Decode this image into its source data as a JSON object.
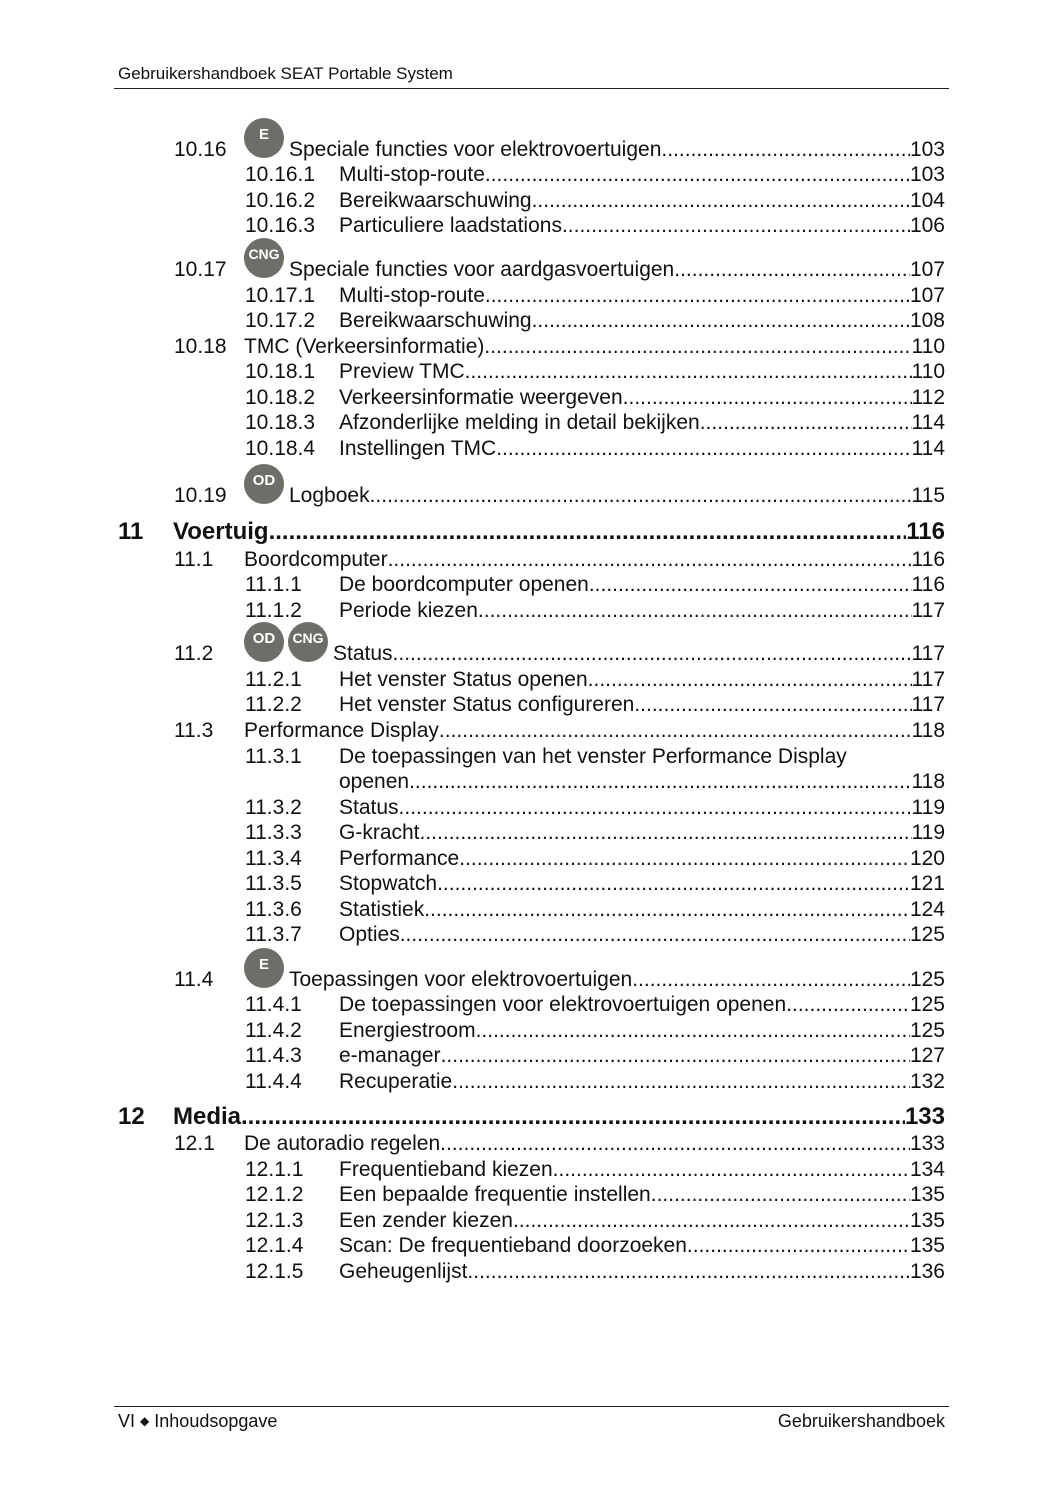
{
  "header": {
    "title": "Gebruikershandboek SEAT Portable System"
  },
  "footer": {
    "left_roman": "VI",
    "left_separator": "◆",
    "left_section": "Inhoudsopgave",
    "right": "Gebruikershandboek"
  },
  "badge_color": "#6f6d68",
  "entries": [
    {
      "level": 2,
      "num": "10.16",
      "title": "Speciale functies voor elektrovoertuigen",
      "page": "103",
      "badges": [
        "E"
      ]
    },
    {
      "level": 3,
      "num": "10.16.1",
      "title": "Multi-stop-route",
      "page": "103"
    },
    {
      "level": 3,
      "num": "10.16.2",
      "title": "Bereikwaarschuwing",
      "page": "104"
    },
    {
      "level": 3,
      "num": "10.16.3",
      "title": "Particuliere laadstations",
      "page": "106"
    },
    {
      "level": 2,
      "num": "10.17",
      "title": "Speciale functies voor aardgasvoertuigen",
      "page": "107",
      "badges": [
        "CNG"
      ]
    },
    {
      "level": 3,
      "num": "10.17.1",
      "title": "Multi-stop-route",
      "page": "107"
    },
    {
      "level": 3,
      "num": "10.17.2",
      "title": "Bereikwaarschuwing",
      "page": "108"
    },
    {
      "level": 2,
      "num": "10.18",
      "title": "TMC (Verkeersinformatie)",
      "page": "110"
    },
    {
      "level": 3,
      "num": "10.18.1",
      "title": "Preview TMC",
      "page": "110"
    },
    {
      "level": 3,
      "num": "10.18.2",
      "title": "Verkeersinformatie weergeven",
      "page": "112"
    },
    {
      "level": 3,
      "num": "10.18.3",
      "title": "Afzonderlijke melding in detail bekijken",
      "page": "114"
    },
    {
      "level": 3,
      "num": "10.18.4",
      "title": "Instellingen TMC",
      "page": "114"
    },
    {
      "level": 2,
      "num": "10.19",
      "title": "Logboek",
      "page": "115",
      "badges": [
        "OD"
      ]
    },
    {
      "level": 1,
      "num": "11",
      "title": "Voertuig",
      "page": "116"
    },
    {
      "level": 2,
      "num": "11.1",
      "title": "Boordcomputer",
      "page": "116"
    },
    {
      "level": 3,
      "num": "11.1.1",
      "title": "De boordcomputer openen",
      "page": "116"
    },
    {
      "level": 3,
      "num": "11.1.2",
      "title": "Periode kiezen",
      "page": "117"
    },
    {
      "level": 2,
      "num": "11.2",
      "title": "Status",
      "page": "117",
      "badges": [
        "OD",
        "CNG"
      ]
    },
    {
      "level": 3,
      "num": "11.2.1",
      "title": "Het venster Status openen",
      "page": "117"
    },
    {
      "level": 3,
      "num": "11.2.2",
      "title": "Het venster Status configureren",
      "page": "117"
    },
    {
      "level": 2,
      "num": "11.3",
      "title": "Performance Display",
      "page": "118"
    },
    {
      "level": 3,
      "num": "11.3.1",
      "title": "De toepassingen van het venster Performance Display",
      "title_cont": "openen",
      "page": "118"
    },
    {
      "level": 3,
      "num": "11.3.2",
      "title": "Status",
      "page": "119"
    },
    {
      "level": 3,
      "num": "11.3.3",
      "title": "G-kracht",
      "page": "119"
    },
    {
      "level": 3,
      "num": "11.3.4",
      "title": "Performance",
      "page": "120"
    },
    {
      "level": 3,
      "num": "11.3.5",
      "title": "Stopwatch",
      "page": "121"
    },
    {
      "level": 3,
      "num": "11.3.6",
      "title": "Statistiek",
      "page": "124"
    },
    {
      "level": 3,
      "num": "11.3.7",
      "title": "Opties",
      "page": "125"
    },
    {
      "level": 2,
      "num": "11.4",
      "title": "Toepassingen voor elektrovoertuigen",
      "page": "125",
      "badges": [
        "E"
      ]
    },
    {
      "level": 3,
      "num": "11.4.1",
      "title": "De toepassingen voor elektrovoertuigen openen",
      "page": "125"
    },
    {
      "level": 3,
      "num": "11.4.2",
      "title": "Energiestroom",
      "page": "125"
    },
    {
      "level": 3,
      "num": "11.4.3",
      "title": "e-manager",
      "page": "127"
    },
    {
      "level": 3,
      "num": "11.4.4",
      "title": "Recuperatie",
      "page": "132"
    },
    {
      "level": 1,
      "num": "12",
      "title": "Media",
      "page": "133"
    },
    {
      "level": 2,
      "num": "12.1",
      "title": "De autoradio regelen",
      "page": "133"
    },
    {
      "level": 3,
      "num": "12.1.1",
      "title": "Frequentieband kiezen",
      "page": "134"
    },
    {
      "level": 3,
      "num": "12.1.2",
      "title": "Een bepaalde frequentie instellen",
      "page": "135"
    },
    {
      "level": 3,
      "num": "12.1.3",
      "title": "Een zender kiezen",
      "page": "135"
    },
    {
      "level": 3,
      "num": "12.1.4",
      "title": "Scan: De frequentieband doorzoeken",
      "page": "135"
    },
    {
      "level": 3,
      "num": "12.1.5",
      "title": "Geheugenlijst",
      "page": "136"
    }
  ]
}
